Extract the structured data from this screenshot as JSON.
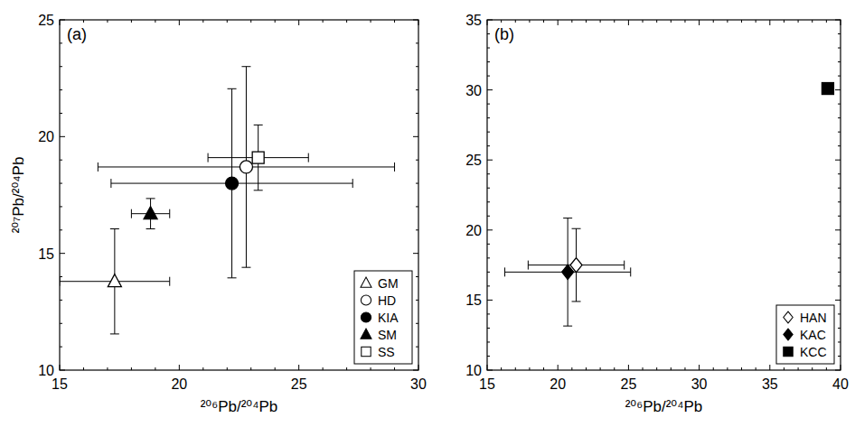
{
  "chart_data": [
    {
      "type": "scatter",
      "title": "(a)",
      "x_label": "²⁰⁶Pb/²⁰⁴Pb",
      "y_label": "²⁰⁷Pb/²⁰⁴Pb",
      "xlim": [
        15,
        30
      ],
      "ylim": [
        10,
        25
      ],
      "xticks": [
        15,
        20,
        25,
        30
      ],
      "yticks": [
        10,
        15,
        20,
        25
      ],
      "grid": false,
      "legend": "lower right",
      "series": [
        {
          "name": "GM",
          "marker": "open-triangle",
          "color": "#000000",
          "x": [
            17.3
          ],
          "values": [
            13.8
          ],
          "x_error": [
            2.3
          ],
          "y_error": [
            2.25
          ]
        },
        {
          "name": "HD",
          "marker": "open-circle",
          "color": "#000000",
          "x": [
            22.8
          ],
          "values": [
            18.7
          ],
          "x_error": [
            6.2
          ],
          "y_error": [
            4.3
          ]
        },
        {
          "name": "KIA",
          "marker": "filled-circle",
          "color": "#000000",
          "x": [
            22.2
          ],
          "values": [
            18.0
          ],
          "x_error": [
            5.05
          ],
          "y_error": [
            4.05
          ]
        },
        {
          "name": "SM",
          "marker": "filled-triangle",
          "color": "#000000",
          "x": [
            18.8
          ],
          "values": [
            16.7
          ],
          "x_error": [
            0.8
          ],
          "y_error": [
            0.65
          ]
        },
        {
          "name": "SS",
          "marker": "open-square",
          "color": "#000000",
          "x": [
            23.3
          ],
          "values": [
            19.1
          ],
          "x_error": [
            2.1
          ],
          "y_error": [
            1.4
          ]
        }
      ]
    },
    {
      "type": "scatter",
      "title": "(b)",
      "x_label": "²⁰⁶Pb/²⁰⁴Pb",
      "xlim": [
        15,
        40
      ],
      "ylim": [
        10,
        35
      ],
      "xticks": [
        15,
        20,
        25,
        30,
        35,
        40
      ],
      "yticks": [
        10,
        15,
        20,
        25,
        30,
        35
      ],
      "grid": false,
      "legend": "lower right",
      "series": [
        {
          "name": "HAN",
          "marker": "open-diamond",
          "color": "#000000",
          "x": [
            21.3
          ],
          "values": [
            17.5
          ],
          "x_error": [
            3.4
          ],
          "y_error": [
            2.6
          ]
        },
        {
          "name": "KAC",
          "marker": "filled-diamond",
          "color": "#000000",
          "x": [
            20.7
          ],
          "values": [
            17.0
          ],
          "x_error": [
            4.45
          ],
          "y_error": [
            3.85
          ]
        },
        {
          "name": "KCC",
          "marker": "filled-square",
          "color": "#000000",
          "x": [
            39.1
          ],
          "values": [
            30.1
          ],
          "x_error": [
            null
          ],
          "y_error": [
            null
          ]
        }
      ]
    }
  ]
}
